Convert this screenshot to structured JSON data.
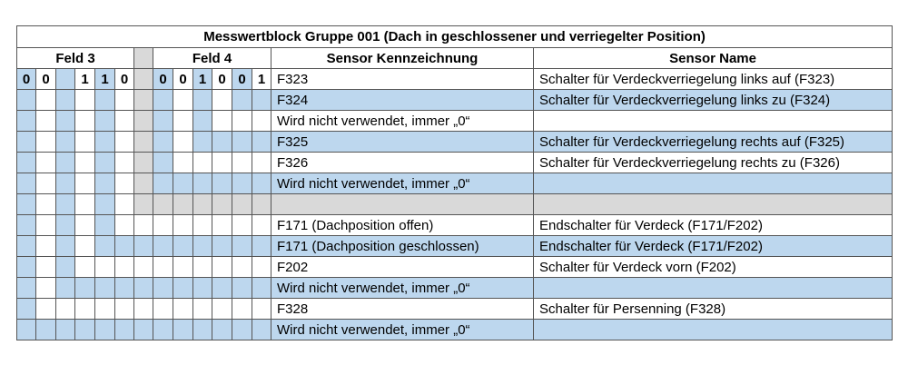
{
  "colors": {
    "blue": "#bdd7ee",
    "white": "#ffffff",
    "gray": "#d9d9d9",
    "border": "#555555"
  },
  "title": "Messwertblock Gruppe 001 (Dach in geschlossener und verriegelter Position)",
  "headers": {
    "feld3": "Feld 3",
    "feld4": "Feld 4",
    "kennzeichnung": "Sensor Kennzeichnung",
    "name": "Sensor Name"
  },
  "rows": [
    {
      "bits": [
        "0",
        "0",
        "",
        "1",
        "1",
        "0",
        "",
        "0",
        "0",
        "1",
        "0",
        "0",
        "1"
      ],
      "fills": "BWBWBWGBWBWBW",
      "text_fill": "W",
      "kennzeichnung": "F323",
      "name": "Schalter für Verdeckverriegelung links auf (F323)"
    },
    {
      "bits": [],
      "fills": "BWBWBWGBWBWBB",
      "text_fill": "B",
      "kennzeichnung": "F324",
      "name": "Schalter für Verdeckverriegelung links zu (F324)"
    },
    {
      "bits": [],
      "fills": "BWBWBWGBWBWWW",
      "text_fill": "W",
      "kennzeichnung": "Wird nicht verwendet, immer „0“",
      "name": ""
    },
    {
      "bits": [],
      "fills": "BWBWBWGBWBBBB",
      "text_fill": "B",
      "kennzeichnung": "F325",
      "name": "Schalter für Verdeckverriegelung rechts auf (F325)"
    },
    {
      "bits": [],
      "fills": "BWBWBWGBWWWWW",
      "text_fill": "W",
      "kennzeichnung": "F326",
      "name": "Schalter für Verdeckverriegelung rechts zu (F326)"
    },
    {
      "bits": [],
      "fills": "BWBWBWGBBBBBB",
      "text_fill": "B",
      "kennzeichnung": "Wird nicht verwendet, immer „0“",
      "name": ""
    },
    {
      "bits": [],
      "fills": "BWBWBWGGGGGGG",
      "text_fill": "G",
      "kennzeichnung": "",
      "name": ""
    },
    {
      "bits": [],
      "fills": "BWBWBWWWWWWWW",
      "text_fill": "W",
      "kennzeichnung": "F171 (Dachposition offen)",
      "name": "Endschalter für Verdeck (F171/F202)"
    },
    {
      "bits": [],
      "fills": "BWBWBBBBBBBBB",
      "text_fill": "B",
      "kennzeichnung": "F171 (Dachposition geschlossen)",
      "name": "Endschalter für Verdeck (F171/F202)"
    },
    {
      "bits": [],
      "fills": "BWBWWWWWWWWWW",
      "text_fill": "W",
      "kennzeichnung": "F202",
      "name": "Schalter für Verdeck vorn (F202)"
    },
    {
      "bits": [],
      "fills": "BWBBBBBBBBBBB",
      "text_fill": "B",
      "kennzeichnung": "Wird nicht verwendet, immer „0“",
      "name": ""
    },
    {
      "bits": [],
      "fills": "BWWWWWWWWWWWW",
      "text_fill": "W",
      "kennzeichnung": "F328",
      "name": "Schalter für Persenning (F328)"
    },
    {
      "bits": [],
      "fills": "BBBBBBBBBBBBB",
      "text_fill": "B",
      "kennzeichnung": "Wird nicht verwendet, immer „0“",
      "name": ""
    }
  ]
}
